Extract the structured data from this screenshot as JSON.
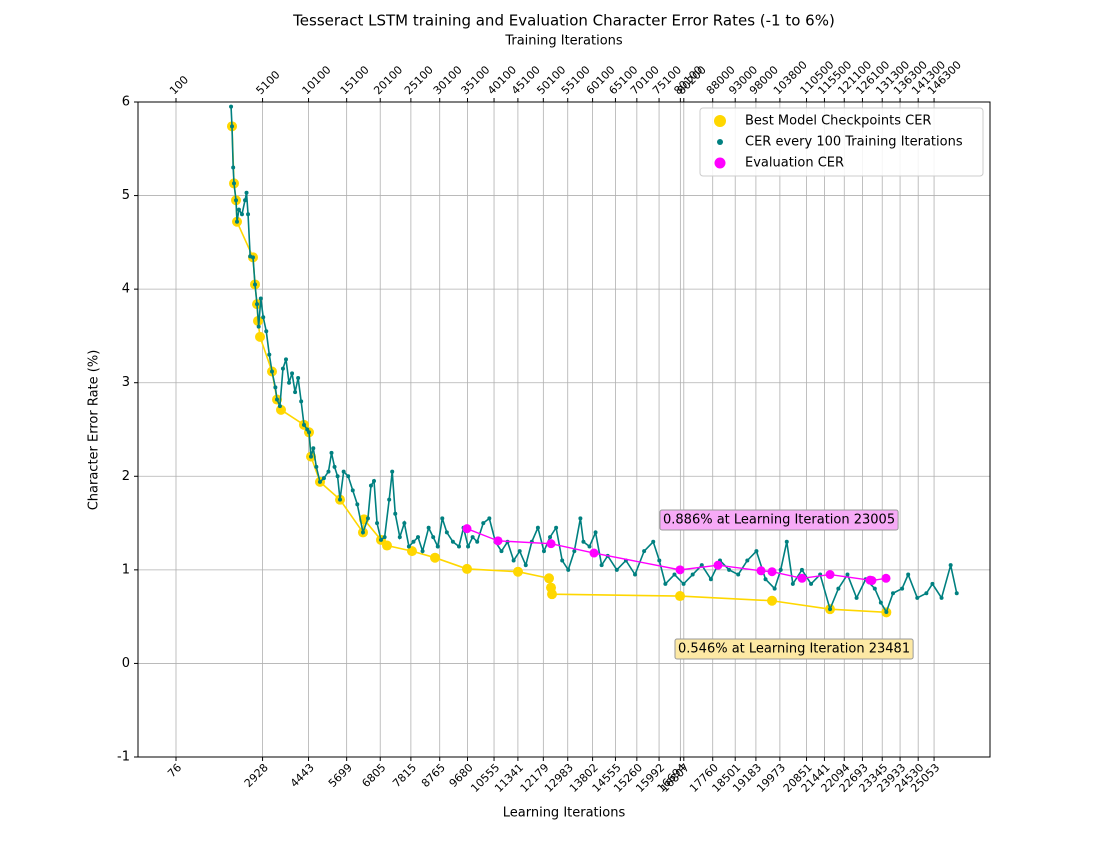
{
  "chart_data": {
    "type": "line",
    "title": "Tesseract LSTM training and Evaluation Character Error Rates (-1 to 6%)",
    "x2_label": "Training Iterations",
    "xlabel": "Learning Iterations",
    "ylabel": "Character Error Rate (%)",
    "xlim": [
      -1176,
      26896
    ],
    "ylim": [
      -1,
      6
    ],
    "yticks": [
      -1,
      0,
      1,
      2,
      3,
      4,
      5,
      6
    ],
    "xticks": [
      76,
      2928,
      4443,
      5699,
      6805,
      7815,
      8765,
      9680,
      10555,
      11341,
      12179,
      12983,
      13802,
      14555,
      15260,
      15992,
      16694,
      16807,
      17760,
      18501,
      19183,
      19973,
      20851,
      21441,
      22094,
      22693,
      23345,
      23933,
      24530,
      25053
    ],
    "x2ticks": [
      {
        "value": 76,
        "label": "100"
      },
      {
        "value": 2928,
        "label": "5100"
      },
      {
        "value": 4443,
        "label": "10100"
      },
      {
        "value": 5699,
        "label": "15100"
      },
      {
        "value": 6805,
        "label": "20100"
      },
      {
        "value": 7815,
        "label": "25100"
      },
      {
        "value": 8765,
        "label": "30100"
      },
      {
        "value": 9680,
        "label": "35100"
      },
      {
        "value": 10555,
        "label": "40100"
      },
      {
        "value": 11341,
        "label": "45100"
      },
      {
        "value": 12179,
        "label": "50100"
      },
      {
        "value": 12983,
        "label": "55100"
      },
      {
        "value": 13802,
        "label": "60100"
      },
      {
        "value": 14555,
        "label": "65100"
      },
      {
        "value": 15260,
        "label": "70100"
      },
      {
        "value": 15992,
        "label": "75100"
      },
      {
        "value": 16694,
        "label": "80100"
      },
      {
        "value": 16807,
        "label": "80200"
      },
      {
        "value": 17760,
        "label": "88000"
      },
      {
        "value": 18501,
        "label": "93000"
      },
      {
        "value": 19183,
        "label": "98000"
      },
      {
        "value": 19973,
        "label": "103800"
      },
      {
        "value": 20851,
        "label": "110500"
      },
      {
        "value": 21441,
        "label": "115500"
      },
      {
        "value": 22094,
        "label": "121100"
      },
      {
        "value": 22693,
        "label": "126100"
      },
      {
        "value": 23345,
        "label": "131300"
      },
      {
        "value": 23933,
        "label": "136300"
      },
      {
        "value": 24530,
        "label": "141300"
      },
      {
        "value": 25053,
        "label": "146300"
      }
    ],
    "grid": true,
    "legend": "upper right",
    "series": [
      {
        "name": "Best Model Checkpoints CER",
        "color": "#ffd700",
        "x": [
          1921,
          1987,
          2053,
          2086,
          2613,
          2679,
          2745,
          2778,
          2844,
          3239,
          3404,
          3536,
          4293,
          4458,
          4524,
          4820,
          5480,
          6237,
          6270,
          6830,
          7028,
          7852,
          8610,
          9664,
          11344,
          12366,
          12432,
          12465,
          16683,
          19714,
          21625,
          23481
        ],
        "values": [
          5.74,
          5.13,
          4.95,
          4.72,
          4.34,
          4.05,
          3.84,
          3.66,
          3.49,
          3.12,
          2.82,
          2.71,
          2.55,
          2.47,
          2.21,
          1.94,
          1.75,
          1.4,
          1.54,
          1.32,
          1.26,
          1.2,
          1.13,
          1.01,
          0.98,
          0.91,
          0.81,
          0.74,
          0.72,
          0.67,
          0.58,
          0.546
        ]
      },
      {
        "name": "CER every 100 Training Iterations",
        "color": "#008080",
        "x": [
          1890,
          1921,
          1960,
          1987,
          2053,
          2086,
          2150,
          2250,
          2350,
          2400,
          2450,
          2520,
          2613,
          2679,
          2745,
          2800,
          2870,
          2950,
          3050,
          3150,
          3239,
          3350,
          3404,
          3500,
          3600,
          3700,
          3800,
          3900,
          4000,
          4100,
          4200,
          4293,
          4400,
          4458,
          4524,
          4600,
          4700,
          4820,
          4950,
          5100,
          5200,
          5300,
          5400,
          5480,
          5600,
          5750,
          5900,
          6050,
          6237,
          6400,
          6500,
          6600,
          6700,
          6830,
          6950,
          7100,
          7200,
          7300,
          7450,
          7600,
          7750,
          7900,
          8050,
          8200,
          8400,
          8550,
          8700,
          8850,
          9000,
          9200,
          9400,
          9550,
          9700,
          9850,
          10000,
          10200,
          10400,
          10600,
          10800,
          11000,
          11200,
          11400,
          11600,
          11800,
          12000,
          12200,
          12400,
          12600,
          12800,
          13000,
          13200,
          13400,
          13500,
          13700,
          13900,
          14100,
          14300,
          14600,
          14900,
          15200,
          15500,
          15800,
          16000,
          16200,
          16500,
          16800,
          17100,
          17400,
          17700,
          18000,
          18300,
          18600,
          18900,
          19200,
          19500,
          19800,
          20000,
          20200,
          20400,
          20700,
          21000,
          21300,
          21625,
          21900,
          22200,
          22500,
          22800,
          23100,
          23300,
          23481,
          23700,
          24000,
          24200,
          24500,
          24800,
          25000,
          25300,
          25600,
          25800
        ],
        "values": [
          5.95,
          5.74,
          5.3,
          5.13,
          4.95,
          4.72,
          4.85,
          4.8,
          4.95,
          5.03,
          4.8,
          4.35,
          4.34,
          4.05,
          3.84,
          3.6,
          3.9,
          3.7,
          3.55,
          3.3,
          3.12,
          2.95,
          2.82,
          2.75,
          3.15,
          3.25,
          3.0,
          3.1,
          2.9,
          3.05,
          2.8,
          2.55,
          2.5,
          2.47,
          2.21,
          2.3,
          2.1,
          1.94,
          1.98,
          2.05,
          2.25,
          2.1,
          2.0,
          1.75,
          2.05,
          2.0,
          1.85,
          1.7,
          1.4,
          1.55,
          1.9,
          1.95,
          1.5,
          1.32,
          1.35,
          1.75,
          2.05,
          1.6,
          1.35,
          1.5,
          1.25,
          1.3,
          1.35,
          1.2,
          1.45,
          1.35,
          1.25,
          1.55,
          1.4,
          1.3,
          1.25,
          1.45,
          1.25,
          1.35,
          1.3,
          1.5,
          1.55,
          1.3,
          1.2,
          1.3,
          1.1,
          1.2,
          1.05,
          1.3,
          1.45,
          1.2,
          1.35,
          1.45,
          1.1,
          1.0,
          1.2,
          1.55,
          1.3,
          1.25,
          1.4,
          1.05,
          1.15,
          1.0,
          1.1,
          0.95,
          1.2,
          1.3,
          1.1,
          0.85,
          0.95,
          0.85,
          0.95,
          1.05,
          0.9,
          1.1,
          1.0,
          0.95,
          1.1,
          1.2,
          0.9,
          0.8,
          1.0,
          1.3,
          0.85,
          1.0,
          0.85,
          0.95,
          0.58,
          0.8,
          0.95,
          0.7,
          0.9,
          0.8,
          0.65,
          0.55,
          0.75,
          0.8,
          0.95,
          0.7,
          0.75,
          0.85,
          0.7,
          1.05,
          0.75
        ]
      },
      {
        "name": "Evaluation CER",
        "color": "#ff00ff",
        "x": [
          9664,
          10685,
          12432,
          13848,
          16683,
          17935,
          19352,
          19714,
          20703,
          21625,
          22943,
          23005,
          23470
        ],
        "values": [
          1.44,
          1.31,
          1.28,
          1.18,
          1.0,
          1.05,
          0.99,
          0.98,
          0.91,
          0.95,
          0.89,
          0.886,
          0.91
        ]
      }
    ],
    "annotations": [
      "0.886% at Learning Iteration 23005",
      "0.546% at Learning Iteration 23481"
    ]
  }
}
